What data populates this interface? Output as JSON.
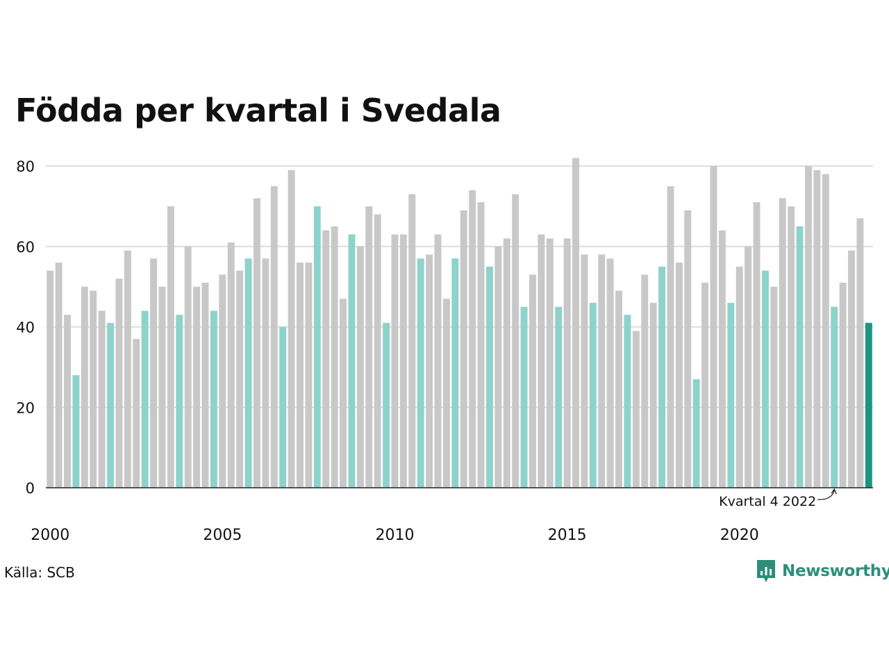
{
  "chart_data": {
    "type": "bar",
    "title": "Födda per kvartal i Svedala",
    "xlabel": "",
    "ylabel": "",
    "ylim": [
      0,
      82
    ],
    "yticks": [
      0,
      20,
      40,
      60,
      80
    ],
    "x_tick_labels": [
      "2000",
      "2005",
      "2010",
      "2015",
      "2020"
    ],
    "x_tick_indices": [
      0,
      20,
      40,
      60,
      80
    ],
    "values": [
      54,
      56,
      43,
      28,
      50,
      49,
      44,
      41,
      52,
      59,
      37,
      44,
      57,
      50,
      70,
      43,
      60,
      50,
      51,
      44,
      53,
      61,
      54,
      57,
      72,
      57,
      75,
      40,
      79,
      56,
      56,
      70,
      64,
      65,
      47,
      63,
      60,
      70,
      68,
      41,
      63,
      63,
      73,
      57,
      58,
      63,
      47,
      57,
      69,
      74,
      71,
      55,
      60,
      62,
      73,
      45,
      53,
      63,
      62,
      45,
      62,
      82,
      58,
      46,
      58,
      57,
      49,
      43,
      39,
      53,
      46,
      55,
      75,
      56,
      69,
      27,
      51,
      80,
      64,
      46,
      55,
      60,
      71,
      54,
      50,
      72,
      70,
      65,
      80,
      79,
      78,
      45,
      51,
      59,
      67,
      41
    ],
    "highlight_quarter": 4,
    "annotation": "Kvartal 4 2022",
    "colors": {
      "bar": "#c8c8c8",
      "highlight": "#8dd3cb",
      "latest": "#1a9582",
      "grid": "#dddddd",
      "axis": "#222222",
      "text": "#111111"
    },
    "grid": true
  },
  "source": "Källa: SCB",
  "logo": {
    "text": "Newsworthy",
    "icon": "newsworthy-logo-icon"
  }
}
